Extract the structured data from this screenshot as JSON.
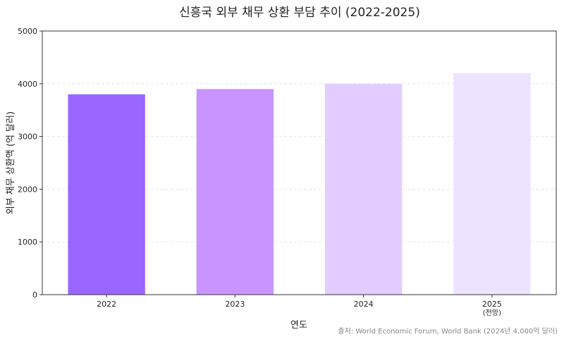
{
  "chart_data": {
    "type": "bar",
    "title": "신흥국 외부 채무 상환 부담 추이 (2022-2025)",
    "xlabel": "연도",
    "ylabel": "외부 채무 상환액 (억 달러)",
    "categories": [
      "2022",
      "2023",
      "2024",
      "2025"
    ],
    "category_sublabels": [
      "",
      "",
      "",
      "(전망)"
    ],
    "values": [
      3800,
      3900,
      4000,
      4200
    ],
    "ylim": [
      0,
      5000
    ],
    "yticks": [
      0,
      1000,
      2000,
      3000,
      4000,
      5000
    ],
    "grid": true,
    "bar_colors": [
      "#9966ff",
      "#c994ff",
      "#e3ccff",
      "#eee3ff"
    ],
    "source": "출처: World Economic Forum, World Bank (2024년 4,000억 달러)"
  }
}
